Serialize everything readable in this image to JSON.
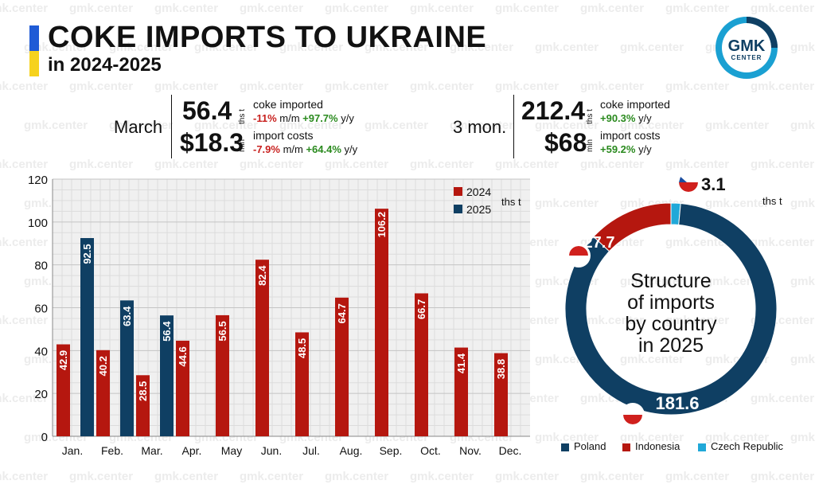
{
  "header": {
    "title": "COKE IMPORTS TO UKRAINE",
    "subtitle": "in 2024-2025",
    "logo_top": "GMK",
    "logo_bottom": "CENTER",
    "watermark": "gmk.center"
  },
  "kpi_march": {
    "label": "March",
    "volume": "56.4",
    "volume_unit": "ths t",
    "volume_desc": "coke imported",
    "volume_mm": "-11%",
    "volume_mm_suffix": " m/m ",
    "volume_yy": "+97.7%",
    "volume_yy_suffix": " y/y",
    "cost": "$18.3",
    "cost_unit": "mln",
    "cost_desc": "import costs",
    "cost_mm": "-7.9%",
    "cost_mm_suffix": " m/m ",
    "cost_yy": "+64.4%",
    "cost_yy_suffix": " y/y"
  },
  "kpi_3mon": {
    "label": "3 mon.",
    "volume": "212.4",
    "volume_unit": "ths t",
    "volume_desc": "coke imported",
    "volume_yy": "+90.3%",
    "volume_yy_suffix": " y/y",
    "cost": "$68",
    "cost_unit": "mln",
    "cost_desc": "import costs",
    "cost_yy": "+59.2%",
    "cost_yy_suffix": " y/y"
  },
  "colors": {
    "c2024": "#b5170f",
    "c2025": "#0f3f63",
    "poland": "#0f3f63",
    "indonesia": "#b5170f",
    "czech": "#20a8d8",
    "logo_ring": "#1aa0d2"
  },
  "chart_data": [
    {
      "type": "bar",
      "categories": [
        "Jan.",
        "Feb.",
        "Mar.",
        "Apr.",
        "May",
        "Jun.",
        "Jul.",
        "Aug.",
        "Sep.",
        "Oct.",
        "Nov.",
        "Dec."
      ],
      "series": [
        {
          "name": "2024",
          "values": [
            42.9,
            40.2,
            28.5,
            44.6,
            56.5,
            82.4,
            48.5,
            64.7,
            106.2,
            66.7,
            41.4,
            38.8
          ]
        },
        {
          "name": "2025",
          "values": [
            92.5,
            63.4,
            56.4,
            null,
            null,
            null,
            null,
            null,
            null,
            null,
            null,
            null
          ]
        }
      ],
      "ylabel": "ths t",
      "ylim": [
        0,
        120
      ],
      "yticks": [
        0,
        20,
        40,
        60,
        80,
        100,
        120
      ],
      "grid": true,
      "legend": "top-right"
    },
    {
      "type": "pie",
      "title": "Structure of imports by country in 2025",
      "title_lines": [
        "Structure",
        "of imports",
        "by country",
        "in 2025"
      ],
      "unit": "ths t",
      "labels": [
        "Poland",
        "Indonesia",
        "Czech Republic"
      ],
      "values": [
        181.6,
        27.7,
        3.1
      ],
      "value_labels": [
        "181.6",
        "27.7",
        "3.1"
      ],
      "donut": true,
      "legend": "bottom"
    }
  ]
}
